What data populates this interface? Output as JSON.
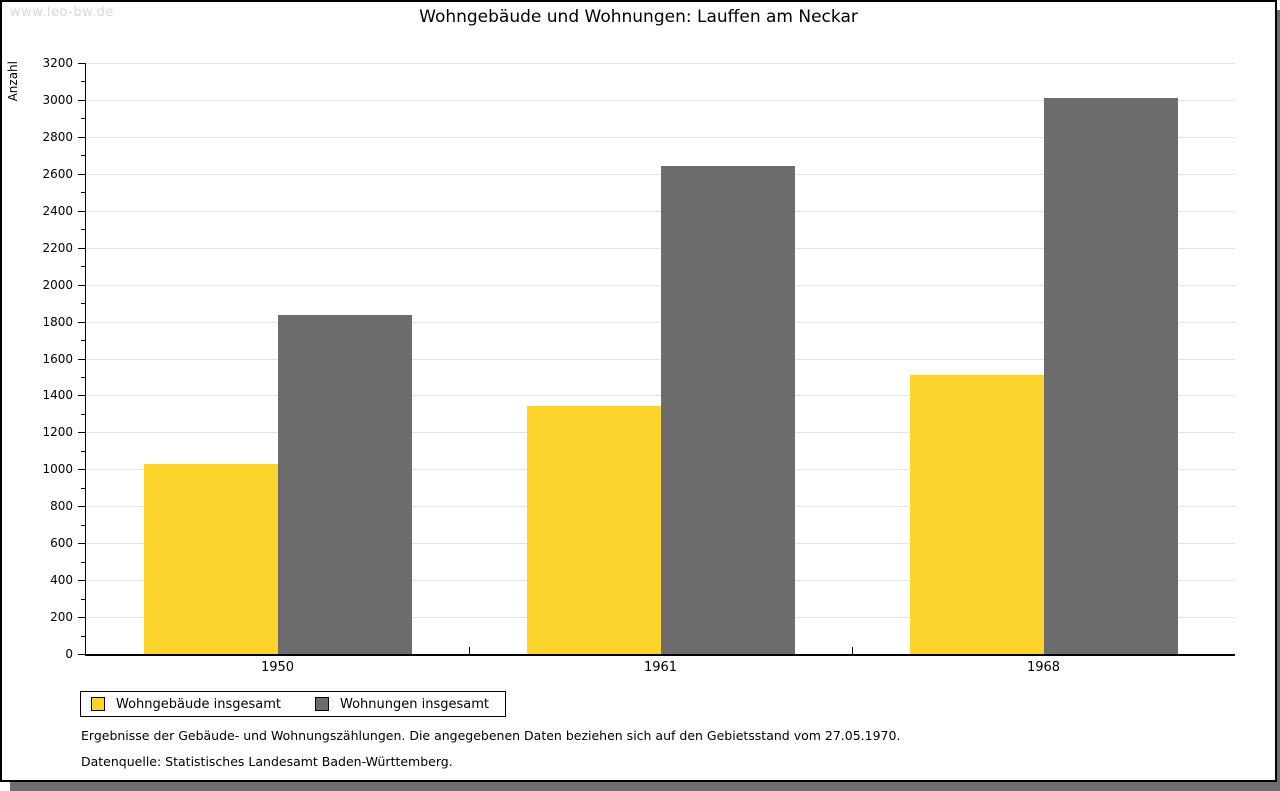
{
  "watermark": "www.leo-bw.de",
  "title": "Wohngebäude und Wohnungen: Lauffen am Neckar",
  "chart_data": {
    "type": "bar",
    "categories": [
      "1950",
      "1961",
      "1968"
    ],
    "series": [
      {
        "name": "Wohngebäude insgesamt",
        "color": "#fdd42c",
        "values": [
          1030,
          1345,
          1510
        ]
      },
      {
        "name": "Wohnungen insgesamt",
        "color": "#6c6c6c",
        "values": [
          1835,
          2645,
          3010
        ]
      }
    ],
    "title": "Wohngebäude und Wohnungen: Lauffen am Neckar",
    "xlabel": "",
    "ylabel": "Anzahl",
    "ylim": [
      0,
      3200
    ],
    "ytick_major": 200,
    "ytick_minor": 100,
    "grid": true,
    "legend_position": "bottom-left"
  },
  "colors": {
    "grid": "#e4e4e4",
    "frame_shadow": "#6e6e6e",
    "watermark": "#d9d9d9"
  },
  "footnotes": [
    "Ergebnisse der Gebäude- und Wohnungszählungen. Die angegebenen Daten beziehen sich auf den Gebietsstand vom 27.05.1970.",
    "Datenquelle: Statistisches Landesamt Baden-Württemberg."
  ]
}
